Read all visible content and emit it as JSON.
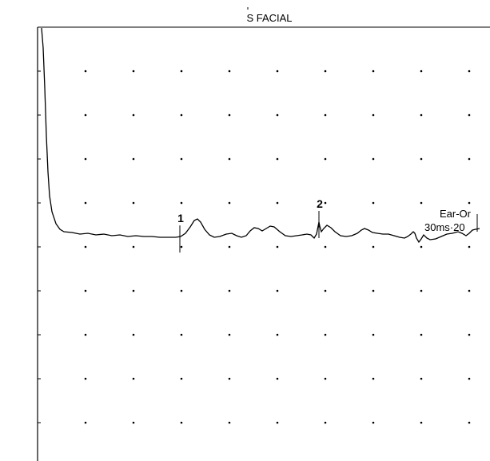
{
  "title": "S FACIAL",
  "channel_label": "Ear-Or",
  "scale_label": "30ms·20",
  "colors": {
    "trace": "#000000",
    "axis": "#000000",
    "grid": "#000000",
    "background": "#ffffff"
  },
  "chart_data": {
    "type": "line",
    "title": "S FACIAL",
    "grid": "dots",
    "markers": [
      {
        "label": "1",
        "x": 225
      },
      {
        "label": "2",
        "x": 399
      }
    ],
    "trace": [
      [
        52,
        35
      ],
      [
        54,
        60
      ],
      [
        56,
        110
      ],
      [
        58,
        170
      ],
      [
        60,
        215
      ],
      [
        62,
        245
      ],
      [
        65,
        265
      ],
      [
        70,
        280
      ],
      [
        75,
        287
      ],
      [
        80,
        290
      ],
      [
        90,
        291
      ],
      [
        100,
        293
      ],
      [
        110,
        292
      ],
      [
        120,
        294
      ],
      [
        130,
        293
      ],
      [
        140,
        295
      ],
      [
        150,
        294
      ],
      [
        160,
        296
      ],
      [
        170,
        295
      ],
      [
        180,
        296
      ],
      [
        190,
        296
      ],
      [
        200,
        297
      ],
      [
        210,
        297
      ],
      [
        220,
        297
      ],
      [
        226,
        296
      ],
      [
        232,
        292
      ],
      [
        238,
        284
      ],
      [
        243,
        276
      ],
      [
        247,
        274
      ],
      [
        251,
        278
      ],
      [
        256,
        287
      ],
      [
        262,
        294
      ],
      [
        268,
        297
      ],
      [
        275,
        296
      ],
      [
        283,
        293
      ],
      [
        290,
        292
      ],
      [
        296,
        295
      ],
      [
        302,
        297
      ],
      [
        308,
        295
      ],
      [
        313,
        289
      ],
      [
        318,
        285
      ],
      [
        323,
        286
      ],
      [
        328,
        289
      ],
      [
        333,
        286
      ],
      [
        338,
        283
      ],
      [
        343,
        284
      ],
      [
        350,
        290
      ],
      [
        357,
        295
      ],
      [
        364,
        296
      ],
      [
        371,
        295
      ],
      [
        378,
        294
      ],
      [
        384,
        293
      ],
      [
        389,
        294
      ],
      [
        393,
        298
      ],
      [
        396,
        293
      ],
      [
        398,
        283
      ],
      [
        399,
        278
      ],
      [
        400,
        283
      ],
      [
        402,
        290
      ],
      [
        405,
        286
      ],
      [
        409,
        282
      ],
      [
        414,
        285
      ],
      [
        419,
        290
      ],
      [
        426,
        295
      ],
      [
        433,
        296
      ],
      [
        440,
        295
      ],
      [
        447,
        292
      ],
      [
        452,
        288
      ],
      [
        456,
        286
      ],
      [
        461,
        288
      ],
      [
        466,
        291
      ],
      [
        472,
        292
      ],
      [
        479,
        293
      ],
      [
        486,
        293
      ],
      [
        493,
        295
      ],
      [
        500,
        297
      ],
      [
        506,
        298
      ],
      [
        510,
        296
      ],
      [
        514,
        293
      ],
      [
        517,
        290
      ],
      [
        519,
        292
      ],
      [
        521,
        298
      ],
      [
        524,
        303
      ],
      [
        527,
        299
      ],
      [
        530,
        294
      ],
      [
        534,
        298
      ],
      [
        538,
        300
      ],
      [
        545,
        299
      ],
      [
        552,
        296
      ],
      [
        559,
        293
      ],
      [
        566,
        292
      ],
      [
        573,
        290
      ],
      [
        578,
        292
      ],
      [
        583,
        295
      ],
      [
        587,
        292
      ],
      [
        591,
        288
      ],
      [
        595,
        287
      ],
      [
        600,
        286
      ]
    ]
  }
}
